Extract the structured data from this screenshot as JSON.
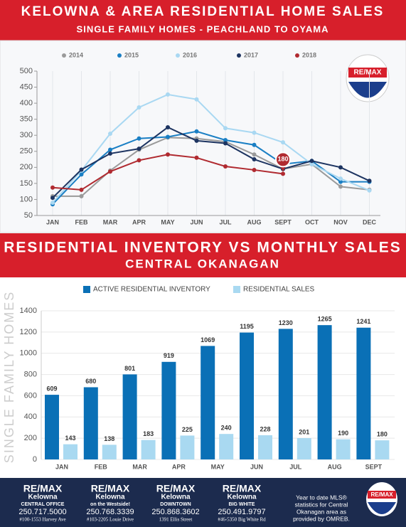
{
  "logo": "RE/MAX",
  "chart_data": [
    {
      "type": "line",
      "title": "KELOWNA & AREA RESIDENTIAL HOME SALES",
      "subtitle": "SINGLE FAMILY HOMES - PEACHLAND TO OYAMA",
      "categories": [
        "JAN",
        "FEB",
        "MAR",
        "APR",
        "MAY",
        "JUN",
        "JUL",
        "AUG",
        "SEPT",
        "OCT",
        "NOV",
        "DEC"
      ],
      "series": [
        {
          "name": "2014",
          "color": "#9a9a9a",
          "values": [
            110,
            110,
            190,
            255,
            293,
            290,
            280,
            240,
            195,
            210,
            140,
            130
          ]
        },
        {
          "name": "2015",
          "color": "#1a7fc4",
          "values": [
            85,
            178,
            255,
            290,
            295,
            312,
            285,
            270,
            210,
            220,
            155,
            155
          ]
        },
        {
          "name": "2016",
          "color": "#a9d8f2",
          "values": [
            90,
            190,
            305,
            387,
            427,
            412,
            322,
            308,
            278,
            210,
            165,
            128
          ]
        },
        {
          "name": "2017",
          "color": "#1d3461",
          "values": [
            105,
            193,
            243,
            258,
            325,
            283,
            275,
            225,
            195,
            220,
            200,
            158
          ]
        },
        {
          "name": "2018",
          "color": "#b02a30",
          "values": [
            137,
            130,
            187,
            222,
            240,
            230,
            203,
            192,
            180,
            null,
            null,
            null
          ]
        }
      ],
      "ylim": [
        50,
        500
      ],
      "yticks": [
        50,
        100,
        150,
        200,
        250,
        300,
        350,
        400,
        450,
        500
      ]
    },
    {
      "type": "bar",
      "title": "RESIDENTIAL INVENTORY VS MONTHLY SALES",
      "subtitle": "CENTRAL OKANAGAN",
      "y_label": "SINGLE FAMILY HOMES",
      "categories": [
        "JAN",
        "FEB",
        "MAR",
        "APR",
        "MAY",
        "JUN",
        "JUL",
        "AUG",
        "SEPT"
      ],
      "series": [
        {
          "name": "ACTIVE RESIDENTIAL INVENTORY",
          "color": "#0a70b6",
          "values": [
            609,
            680,
            801,
            919,
            1069,
            1195,
            1230,
            1265,
            1241
          ]
        },
        {
          "name": "RESIDENTIAL SALES",
          "color": "#a9d9f1",
          "values": [
            143,
            138,
            183,
            225,
            240,
            228,
            201,
            190,
            180
          ]
        }
      ],
      "ylim": [
        0,
        1400
      ],
      "yticks": [
        0,
        200,
        400,
        600,
        800,
        1000,
        1200,
        1400
      ],
      "grid": true
    }
  ],
  "footer": {
    "offices": [
      {
        "brand": "RE/MAX",
        "name": "Kelowna",
        "branch": "CENTRAL OFFICE",
        "phone": "250.717.5000",
        "address": "#100-1553 Harvey Ave"
      },
      {
        "brand": "RE/MAX",
        "name": "Kelowna",
        "branch": "on the Westside!",
        "phone": "250.768.3339",
        "address": "#103-2205 Louie Drive"
      },
      {
        "brand": "RE/MAX",
        "name": "Kelowna",
        "branch": "DOWNTOWN",
        "phone": "250.868.3602",
        "address": "1391 Ellis Street"
      },
      {
        "brand": "RE/MAX",
        "name": "Kelowna",
        "branch": "BIG WHITE",
        "phone": "250.491.9797",
        "address": "#46-5350 Big White Rd"
      }
    ],
    "note": [
      "Year to date MLS®",
      "statistics for Central",
      "Okanagan area as",
      "provided by OMREB."
    ]
  }
}
